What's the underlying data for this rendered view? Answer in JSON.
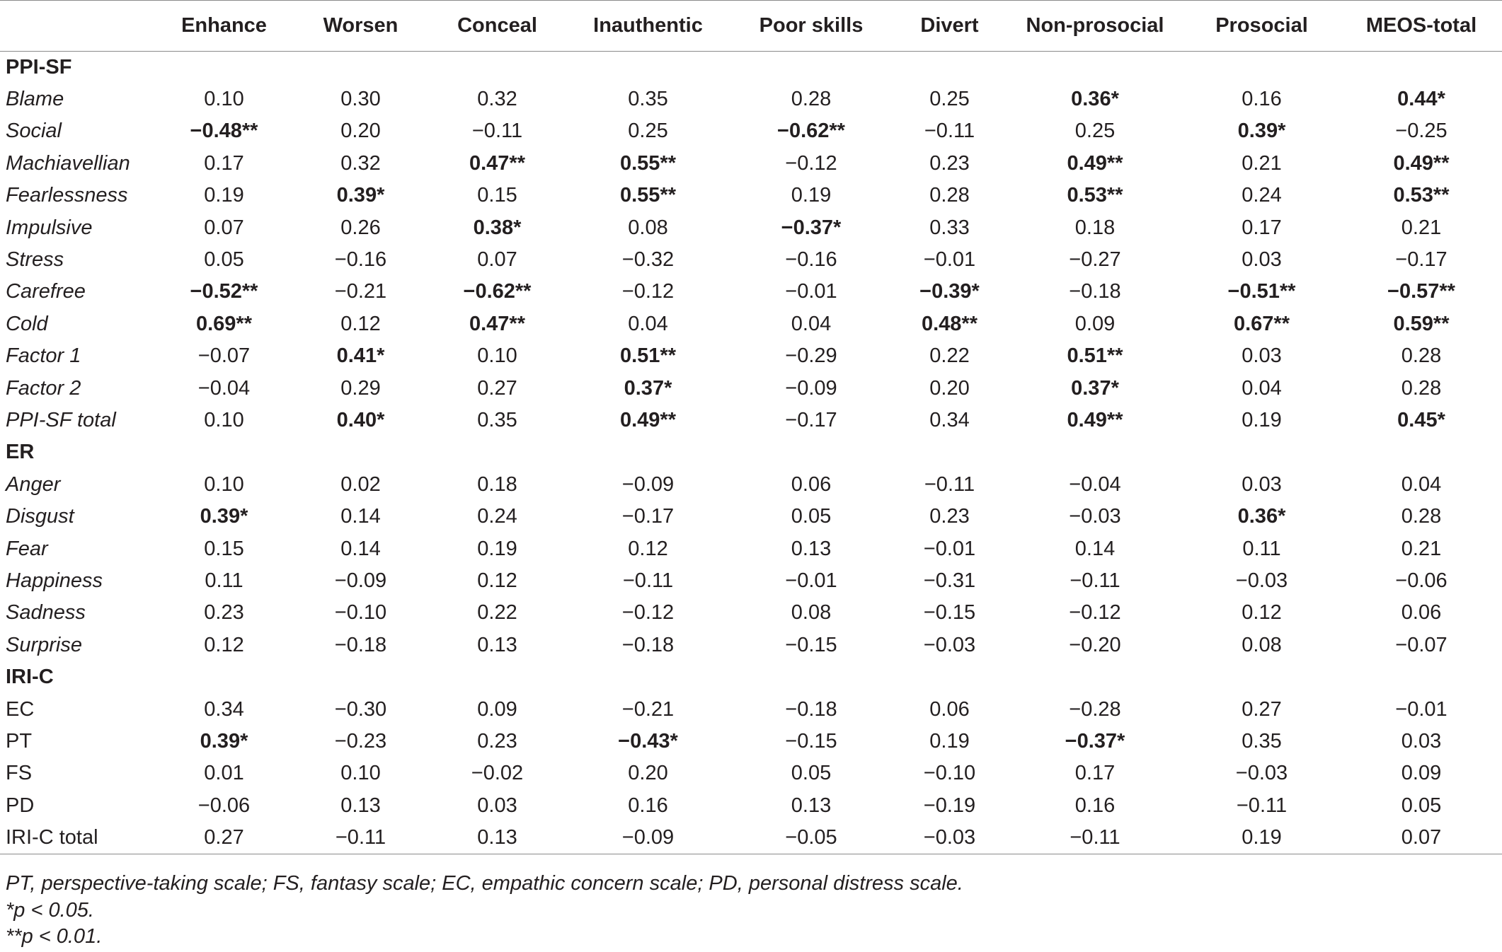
{
  "table": {
    "columns": [
      "",
      "Enhance",
      "Worsen",
      "Conceal",
      "Inauthentic",
      "Poor skills",
      "Divert",
      "Non-prosocial",
      "Prosocial",
      "MEOS-total"
    ],
    "rows": [
      {
        "type": "section",
        "label": "PPI-SF"
      },
      {
        "label": "Blame",
        "italic": true,
        "cells": [
          {
            "v": "0.10"
          },
          {
            "v": "0.30"
          },
          {
            "v": "0.32"
          },
          {
            "v": "0.35"
          },
          {
            "v": "0.28"
          },
          {
            "v": "0.25"
          },
          {
            "v": "0.36*",
            "b": true
          },
          {
            "v": "0.16"
          },
          {
            "v": "0.44*",
            "b": true
          }
        ]
      },
      {
        "label": "Social",
        "italic": true,
        "cells": [
          {
            "v": "−0.48**",
            "b": true
          },
          {
            "v": "0.20"
          },
          {
            "v": "−0.11"
          },
          {
            "v": "0.25"
          },
          {
            "v": "−0.62**",
            "b": true
          },
          {
            "v": "−0.11"
          },
          {
            "v": "0.25"
          },
          {
            "v": "0.39*",
            "b": true
          },
          {
            "v": "−0.25"
          }
        ]
      },
      {
        "label": "Machiavellian",
        "italic": true,
        "cells": [
          {
            "v": "0.17"
          },
          {
            "v": "0.32"
          },
          {
            "v": "0.47**",
            "b": true
          },
          {
            "v": "0.55**",
            "b": true
          },
          {
            "v": "−0.12"
          },
          {
            "v": "0.23"
          },
          {
            "v": "0.49**",
            "b": true
          },
          {
            "v": "0.21"
          },
          {
            "v": "0.49**",
            "b": true
          }
        ]
      },
      {
        "label": "Fearlessness",
        "italic": true,
        "cells": [
          {
            "v": "0.19"
          },
          {
            "v": "0.39*",
            "b": true
          },
          {
            "v": "0.15"
          },
          {
            "v": "0.55**",
            "b": true
          },
          {
            "v": "0.19"
          },
          {
            "v": "0.28"
          },
          {
            "v": "0.53**",
            "b": true
          },
          {
            "v": "0.24"
          },
          {
            "v": "0.53**",
            "b": true
          }
        ]
      },
      {
        "label": "Impulsive",
        "italic": true,
        "cells": [
          {
            "v": "0.07"
          },
          {
            "v": "0.26"
          },
          {
            "v": "0.38*",
            "b": true
          },
          {
            "v": "0.08"
          },
          {
            "v": "−0.37*",
            "b": true
          },
          {
            "v": "0.33"
          },
          {
            "v": "0.18"
          },
          {
            "v": "0.17"
          },
          {
            "v": "0.21"
          }
        ]
      },
      {
        "label": "Stress",
        "italic": true,
        "cells": [
          {
            "v": "0.05"
          },
          {
            "v": "−0.16"
          },
          {
            "v": "0.07"
          },
          {
            "v": "−0.32"
          },
          {
            "v": "−0.16"
          },
          {
            "v": "−0.01"
          },
          {
            "v": "−0.27"
          },
          {
            "v": "0.03"
          },
          {
            "v": "−0.17"
          }
        ]
      },
      {
        "label": "Carefree",
        "italic": true,
        "cells": [
          {
            "v": "−0.52**",
            "b": true
          },
          {
            "v": "−0.21"
          },
          {
            "v": "−0.62**",
            "b": true
          },
          {
            "v": "−0.12"
          },
          {
            "v": "−0.01"
          },
          {
            "v": "−0.39*",
            "b": true
          },
          {
            "v": "−0.18"
          },
          {
            "v": "−0.51**",
            "b": true
          },
          {
            "v": "−0.57**",
            "b": true
          }
        ]
      },
      {
        "label": "Cold",
        "italic": true,
        "cells": [
          {
            "v": "0.69**",
            "b": true
          },
          {
            "v": "0.12"
          },
          {
            "v": "0.47**",
            "b": true
          },
          {
            "v": "0.04"
          },
          {
            "v": "0.04"
          },
          {
            "v": "0.48**",
            "b": true
          },
          {
            "v": "0.09"
          },
          {
            "v": "0.67**",
            "b": true
          },
          {
            "v": "0.59**",
            "b": true
          }
        ]
      },
      {
        "label": "Factor 1",
        "italic": true,
        "cells": [
          {
            "v": "−0.07"
          },
          {
            "v": "0.41*",
            "b": true
          },
          {
            "v": "0.10"
          },
          {
            "v": "0.51**",
            "b": true
          },
          {
            "v": "−0.29"
          },
          {
            "v": "0.22"
          },
          {
            "v": "0.51**",
            "b": true
          },
          {
            "v": "0.03"
          },
          {
            "v": "0.28"
          }
        ]
      },
      {
        "label": "Factor 2",
        "italic": true,
        "cells": [
          {
            "v": "−0.04"
          },
          {
            "v": "0.29"
          },
          {
            "v": "0.27"
          },
          {
            "v": "0.37*",
            "b": true
          },
          {
            "v": "−0.09"
          },
          {
            "v": "0.20"
          },
          {
            "v": "0.37*",
            "b": true
          },
          {
            "v": "0.04"
          },
          {
            "v": "0.28"
          }
        ]
      },
      {
        "label": "PPI-SF total",
        "italic": true,
        "cells": [
          {
            "v": "0.10"
          },
          {
            "v": "0.40*",
            "b": true
          },
          {
            "v": "0.35"
          },
          {
            "v": "0.49**",
            "b": true
          },
          {
            "v": "−0.17"
          },
          {
            "v": "0.34"
          },
          {
            "v": "0.49**",
            "b": true
          },
          {
            "v": "0.19"
          },
          {
            "v": "0.45*",
            "b": true
          }
        ]
      },
      {
        "type": "section",
        "label": "ER"
      },
      {
        "label": "Anger",
        "italic": true,
        "cells": [
          {
            "v": "0.10"
          },
          {
            "v": "0.02"
          },
          {
            "v": "0.18"
          },
          {
            "v": "−0.09"
          },
          {
            "v": "0.06"
          },
          {
            "v": "−0.11"
          },
          {
            "v": "−0.04"
          },
          {
            "v": "0.03"
          },
          {
            "v": "0.04"
          }
        ]
      },
      {
        "label": "Disgust",
        "italic": true,
        "cells": [
          {
            "v": "0.39*",
            "b": true
          },
          {
            "v": "0.14"
          },
          {
            "v": "0.24"
          },
          {
            "v": "−0.17"
          },
          {
            "v": "0.05"
          },
          {
            "v": "0.23"
          },
          {
            "v": "−0.03"
          },
          {
            "v": "0.36*",
            "b": true
          },
          {
            "v": "0.28"
          }
        ]
      },
      {
        "label": "Fear",
        "italic": true,
        "cells": [
          {
            "v": "0.15"
          },
          {
            "v": "0.14"
          },
          {
            "v": "0.19"
          },
          {
            "v": "0.12"
          },
          {
            "v": "0.13"
          },
          {
            "v": "−0.01"
          },
          {
            "v": "0.14"
          },
          {
            "v": "0.11"
          },
          {
            "v": "0.21"
          }
        ]
      },
      {
        "label": "Happiness",
        "italic": true,
        "cells": [
          {
            "v": "0.11"
          },
          {
            "v": "−0.09"
          },
          {
            "v": "0.12"
          },
          {
            "v": "−0.11"
          },
          {
            "v": "−0.01"
          },
          {
            "v": "−0.31"
          },
          {
            "v": "−0.11"
          },
          {
            "v": "−0.03"
          },
          {
            "v": "−0.06"
          }
        ]
      },
      {
        "label": "Sadness",
        "italic": true,
        "cells": [
          {
            "v": "0.23"
          },
          {
            "v": "−0.10"
          },
          {
            "v": "0.22"
          },
          {
            "v": "−0.12"
          },
          {
            "v": "0.08"
          },
          {
            "v": "−0.15"
          },
          {
            "v": "−0.12"
          },
          {
            "v": "0.12"
          },
          {
            "v": "0.06"
          }
        ]
      },
      {
        "label": "Surprise",
        "italic": true,
        "cells": [
          {
            "v": "0.12"
          },
          {
            "v": "−0.18"
          },
          {
            "v": "0.13"
          },
          {
            "v": "−0.18"
          },
          {
            "v": "−0.15"
          },
          {
            "v": "−0.03"
          },
          {
            "v": "−0.20"
          },
          {
            "v": "0.08"
          },
          {
            "v": "−0.07"
          }
        ]
      },
      {
        "type": "section",
        "label": "IRI-C"
      },
      {
        "label": "EC",
        "italic": false,
        "cells": [
          {
            "v": "0.34"
          },
          {
            "v": "−0.30"
          },
          {
            "v": "0.09"
          },
          {
            "v": "−0.21"
          },
          {
            "v": "−0.18"
          },
          {
            "v": "0.06"
          },
          {
            "v": "−0.28"
          },
          {
            "v": "0.27"
          },
          {
            "v": "−0.01"
          }
        ]
      },
      {
        "label": "PT",
        "italic": false,
        "cells": [
          {
            "v": "0.39*",
            "b": true
          },
          {
            "v": "−0.23"
          },
          {
            "v": "0.23"
          },
          {
            "v": "−0.43*",
            "b": true
          },
          {
            "v": "−0.15"
          },
          {
            "v": "0.19"
          },
          {
            "v": "−0.37*",
            "b": true
          },
          {
            "v": "0.35"
          },
          {
            "v": "0.03"
          }
        ]
      },
      {
        "label": "FS",
        "italic": false,
        "cells": [
          {
            "v": "0.01"
          },
          {
            "v": "0.10"
          },
          {
            "v": "−0.02"
          },
          {
            "v": "0.20"
          },
          {
            "v": "0.05"
          },
          {
            "v": "−0.10"
          },
          {
            "v": "0.17"
          },
          {
            "v": "−0.03"
          },
          {
            "v": "0.09"
          }
        ]
      },
      {
        "label": "PD",
        "italic": false,
        "cells": [
          {
            "v": "−0.06"
          },
          {
            "v": "0.13"
          },
          {
            "v": "0.03"
          },
          {
            "v": "0.16"
          },
          {
            "v": "0.13"
          },
          {
            "v": "−0.19"
          },
          {
            "v": "0.16"
          },
          {
            "v": "−0.11"
          },
          {
            "v": "0.05"
          }
        ]
      },
      {
        "label": "IRI-C total",
        "italic": false,
        "cells": [
          {
            "v": "0.27"
          },
          {
            "v": "−0.11"
          },
          {
            "v": "0.13"
          },
          {
            "v": "−0.09"
          },
          {
            "v": "−0.05"
          },
          {
            "v": "−0.03"
          },
          {
            "v": "−0.11"
          },
          {
            "v": "0.19"
          },
          {
            "v": "0.07"
          }
        ]
      }
    ]
  },
  "footnotes": [
    "PT, perspective-taking scale; FS, fantasy scale; EC, empathic concern scale; PD, personal distress scale.",
    "*p < 0.05.",
    "**p < 0.01."
  ]
}
